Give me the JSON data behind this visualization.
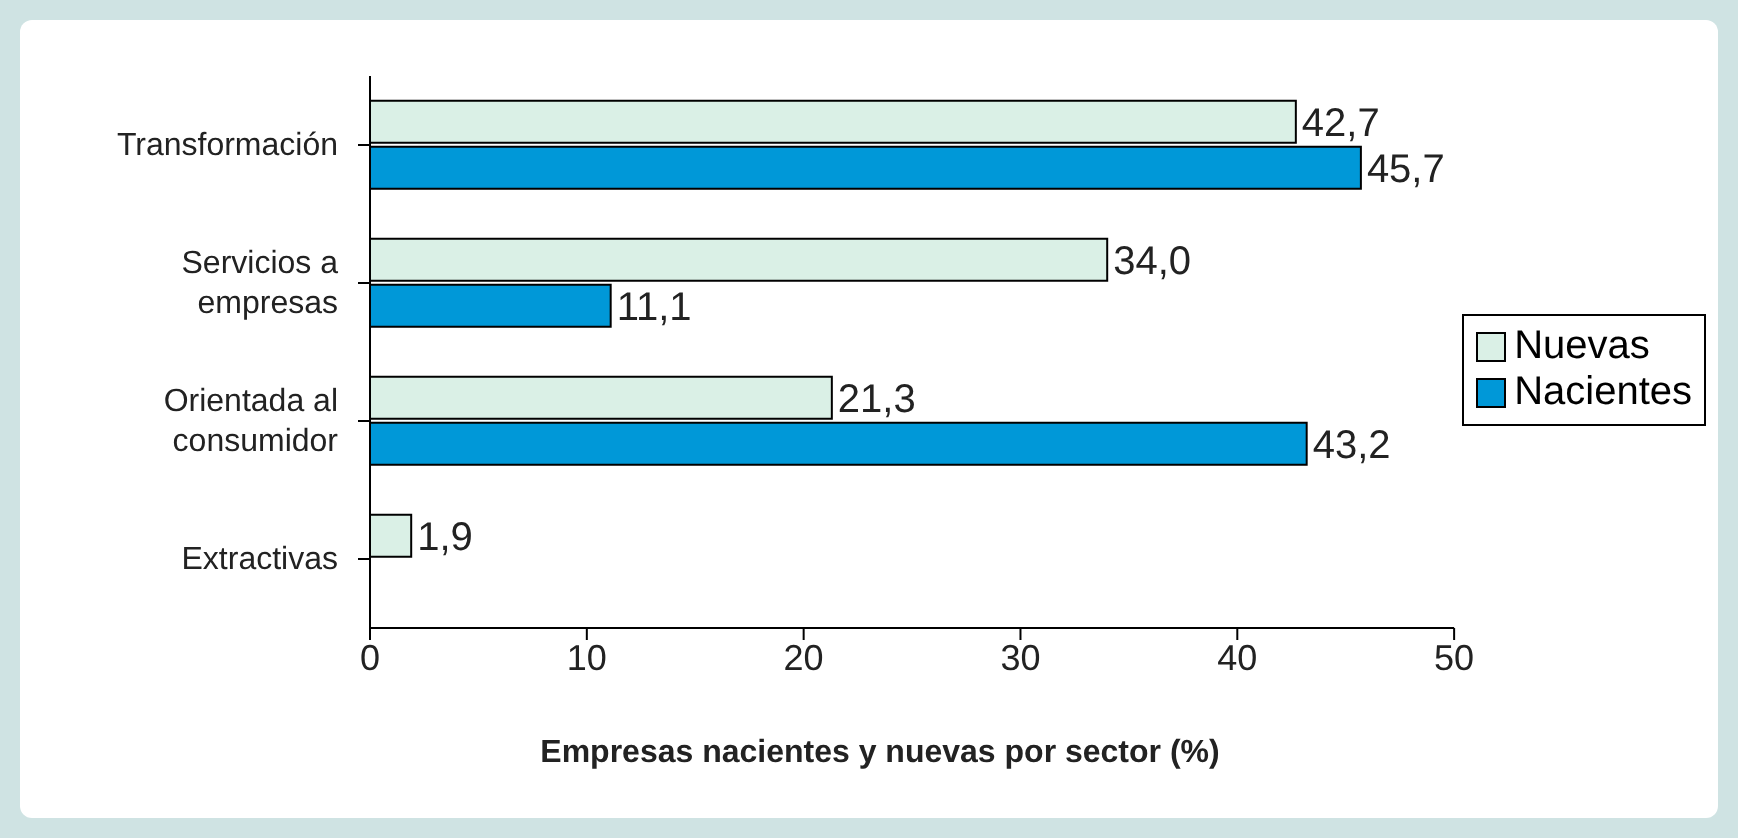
{
  "chart_data": {
    "type": "bar",
    "orientation": "horizontal",
    "xlabel": "Empresas nacientes y nuevas por sector (%)",
    "categories": [
      "Transformación",
      "Servicios a empresas",
      "Orientada al consumidor",
      "Extractivas"
    ],
    "series": [
      {
        "name": "Nuevas",
        "color": "#daf0e6",
        "values": [
          42.7,
          34.0,
          21.3,
          1.9
        ],
        "value_labels": [
          "42,7",
          "34,0",
          "21,3",
          "1,9"
        ]
      },
      {
        "name": "Nacientes",
        "color": "#0098d8",
        "values": [
          45.7,
          11.1,
          43.2,
          null
        ],
        "value_labels": [
          "45,7",
          "11,1",
          "43,2",
          null
        ]
      }
    ],
    "xlim": [
      0,
      50
    ],
    "xticks": [
      0,
      10,
      20,
      30,
      40,
      50
    ],
    "legend": "right"
  }
}
